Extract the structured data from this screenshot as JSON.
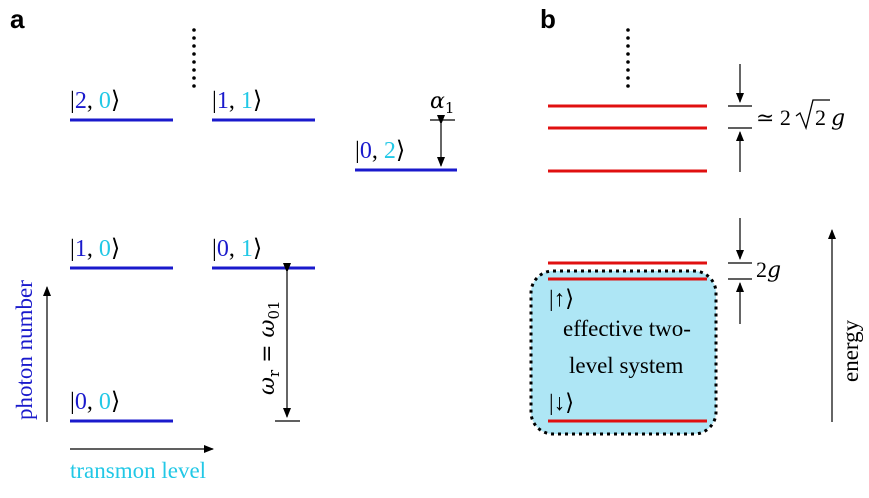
{
  "colors": {
    "level_blue": "#1a1acc",
    "photon_blue": "#1a1acc",
    "transmon_cyan": "#22c8e6",
    "dressed_red": "#e01010",
    "tls_fill": "#aee6f5"
  },
  "panel_a": {
    "label": "a",
    "states": {
      "s20": {
        "photon": "2",
        "transmon": "0"
      },
      "s11": {
        "photon": "1",
        "transmon": "1"
      },
      "s02": {
        "photon": "0",
        "transmon": "2"
      },
      "s10": {
        "photon": "1",
        "transmon": "0"
      },
      "s01": {
        "photon": "0",
        "transmon": "1"
      },
      "s00": {
        "photon": "0",
        "transmon": "0"
      }
    },
    "ket_left": "|",
    "ket_sep": ", ",
    "ket_right": "⟩",
    "anharmonicity": {
      "symbol": "α",
      "subscript": "1"
    },
    "resonance": {
      "lhs": "ω",
      "lhs_sub": "r",
      "eq": " = ",
      "rhs": "ω",
      "rhs_sub": "01"
    },
    "y_axis_label": "photon number",
    "x_axis_label": "transmon level"
  },
  "panel_b": {
    "label": "b",
    "upper_splitting": {
      "approx": "≃ 2",
      "sqrt_arg": "2",
      "g": "g"
    },
    "lower_splitting": {
      "coef": "2",
      "g": "g"
    },
    "tls": {
      "up_state": "|↑⟩",
      "down_state": "|↓⟩",
      "line1": "effective two-",
      "line2": "level system"
    },
    "energy_label": "energy"
  }
}
